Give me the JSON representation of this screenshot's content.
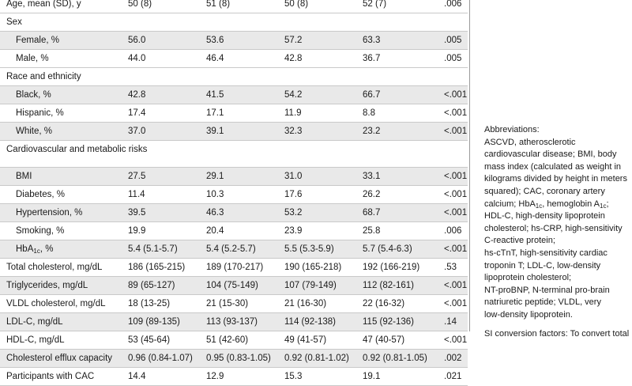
{
  "table": {
    "rows": [
      {
        "kind": "data",
        "top": -6,
        "shade": false,
        "ind": false,
        "label": "Age, mean (SD), y",
        "v": [
          "50 (8)",
          "51 (8)",
          "50 (8)",
          "52 (7)",
          ".006"
        ]
      },
      {
        "kind": "header",
        "label": "Sex"
      },
      {
        "kind": "data",
        "ind": true,
        "label": "Female, %",
        "v": [
          "56.0",
          "53.6",
          "57.2",
          "63.3",
          ".005"
        ]
      },
      {
        "kind": "data",
        "ind": true,
        "label": "Male, %",
        "v": [
          "44.0",
          "46.4",
          "42.8",
          "36.7",
          ".005"
        ]
      },
      {
        "kind": "header",
        "label": "Race and ethnicity"
      },
      {
        "kind": "data",
        "ind": true,
        "label": "Black, %",
        "v": [
          "42.8",
          "41.5",
          "54.2",
          "66.7",
          "<.001"
        ]
      },
      {
        "kind": "data",
        "ind": true,
        "label": "Hispanic, %",
        "v": [
          "17.4",
          "17.1",
          "11.9",
          "8.8",
          "<.001"
        ]
      },
      {
        "kind": "data",
        "ind": true,
        "label": "White, %",
        "v": [
          "37.0",
          "39.1",
          "32.3",
          "23.2",
          "<.001"
        ]
      },
      {
        "kind": "header2",
        "label": "Cardiovascular and metabolic risks"
      },
      {
        "kind": "data",
        "ind": true,
        "label": "BMI",
        "v": [
          "27.5",
          "29.1",
          "31.0",
          "33.1",
          "<.001"
        ]
      },
      {
        "kind": "data",
        "ind": true,
        "label": "Diabetes, %",
        "v": [
          "11.4",
          "10.3",
          "17.6",
          "26.2",
          "<.001"
        ]
      },
      {
        "kind": "data",
        "ind": true,
        "label": "Hypertension, %",
        "v": [
          "39.5",
          "46.3",
          "53.2",
          "68.7",
          "<.001"
        ]
      },
      {
        "kind": "data",
        "ind": true,
        "label": "Smoking, %",
        "v": [
          "19.9",
          "20.4",
          "23.9",
          "25.8",
          ".006"
        ]
      },
      {
        "kind": "hba1c",
        "ind": true,
        "label_pre": "HbA",
        "label_sub": "1c",
        "label_post": ", %",
        "v": [
          "5.4 (5.1-5.7)",
          "5.4 (5.2-5.7)",
          "5.5 (5.3-5.9)",
          "5.7 (5.4-6.3)",
          "<.001"
        ]
      },
      {
        "kind": "data",
        "ind": false,
        "label": "Total cholesterol, mg/dL",
        "v": [
          "186 (165-215)",
          "189 (170-217)",
          "190 (165-218)",
          "192 (166-219)",
          ".53"
        ]
      },
      {
        "kind": "data",
        "ind": false,
        "label": "Triglycerides, mg/dL",
        "v": [
          "89 (65-127)",
          "104 (75-149)",
          "107 (79-149)",
          "112 (82-161)",
          "<.001"
        ]
      },
      {
        "kind": "data",
        "ind": false,
        "label": "VLDL cholesterol, mg/dL",
        "v": [
          "18 (13-25)",
          "21 (15-30)",
          "21 (16-30)",
          "22 (16-32)",
          "<.001"
        ]
      },
      {
        "kind": "data",
        "ind": false,
        "label": "LDL-C, mg/dL",
        "v": [
          "109 (89-135)",
          "113 (93-137)",
          "114 (92-138)",
          "115 (92-136)",
          ".14"
        ]
      },
      {
        "kind": "data",
        "ind": false,
        "label": "HDL-C, mg/dL",
        "v": [
          "53 (45-64)",
          "51 (42-60)",
          "49 (41-57)",
          "47 (40-57)",
          "<.001"
        ]
      },
      {
        "kind": "data",
        "ind": false,
        "label": "Cholesterol efflux capacity",
        "v": [
          "0.96 (0.84-1.07)",
          "0.95 (0.83-1.05)",
          "0.92 (0.81-1.02)",
          "0.92 (0.81-1.05)",
          ".002"
        ]
      },
      {
        "kind": "data",
        "ind": false,
        "label": "Participants with CAC",
        "v": [
          "14.4",
          "12.9",
          "15.3",
          "19.1",
          ".021"
        ]
      }
    ]
  },
  "notes": {
    "abbrev_title": "Abbreviations:",
    "l1": "ASCVD, atherosclerotic",
    "l2": "cardiovascular disease; BMI, body",
    "l3": "mass index (calculated as weight in",
    "l4": "kilograms divided by height in meters",
    "l5": "squared); CAC, coronary artery",
    "l6_pre": "calcium; HbA",
    "l6_sub": "1c",
    "l6_mid": ", hemoglobin A",
    "l6_sub2": "1c",
    "l6_post": ";",
    "l7": "HDL-C, high-density lipoprotein",
    "l8": "cholesterol; hs-CRP, high-sensitivity",
    "l9": "C-reactive protein;",
    "l10": "hs-cTnT, high-sensitivity cardiac",
    "l11": "troponin T; LDL-C, low-density",
    "l12": "lipoprotein cholesterol;",
    "l13": "NT-proBNP, N-terminal pro-brain",
    "l14": "natriuretic peptide; VLDL, very",
    "l15": "low-density lipoprotein.",
    "si": "SI conversion factors: To convert total"
  }
}
